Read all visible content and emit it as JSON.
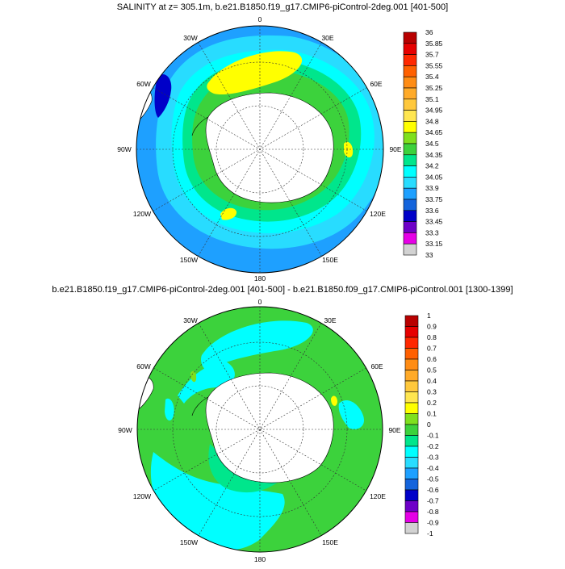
{
  "panels": [
    {
      "title": "SALINITY at z= 305.1m, b.e21.B1850.f19_g17.CMIP6-piControl-2deg.001 [401-500]",
      "colorbar": {
        "labels": [
          "36",
          "35.85",
          "35.7",
          "35.55",
          "35.4",
          "35.25",
          "35.1",
          "34.95",
          "34.8",
          "34.65",
          "34.5",
          "34.35",
          "34.2",
          "34.05",
          "33.9",
          "33.75",
          "33.6",
          "33.45",
          "33.3",
          "33.15",
          "33"
        ],
        "colors": [
          "#b80000",
          "#e60000",
          "#ff2800",
          "#ff6000",
          "#ff8c14",
          "#ffaa28",
          "#ffc83c",
          "#ffe650",
          "#ffff00",
          "#7fe01e",
          "#3cd23c",
          "#00e68c",
          "#00ffff",
          "#28dcff",
          "#1ea0ff",
          "#1464dc",
          "#0000c8",
          "#6e00c8",
          "#e600e6",
          "#d2d2d2",
          "#6e6e6e"
        ]
      }
    },
    {
      "title": "b.e21.B1850.f19_g17.CMIP6-piControl-2deg.001 [401-500] - b.e21.B1850.f09_g17.CMIP6-piControl.001 [1300-1399]",
      "colorbar": {
        "labels": [
          "1",
          "0.9",
          "0.8",
          "0.7",
          "0.6",
          "0.5",
          "0.4",
          "0.3",
          "0.2",
          "0.1",
          "0",
          "-0.1",
          "-0.2",
          "-0.3",
          "-0.4",
          "-0.5",
          "-0.6",
          "-0.7",
          "-0.8",
          "-0.9",
          "-1"
        ],
        "colors": [
          "#b80000",
          "#e60000",
          "#ff2800",
          "#ff6000",
          "#ff8c14",
          "#ffaa28",
          "#ffc83c",
          "#ffe650",
          "#ffff00",
          "#7fe01e",
          "#3cd23c",
          "#00e68c",
          "#00ffff",
          "#28dcff",
          "#1ea0ff",
          "#1464dc",
          "#0000c8",
          "#6e00c8",
          "#e600e6",
          "#d2d2d2",
          "#6e6e6e"
        ]
      }
    }
  ],
  "longitude_labels": [
    "0",
    "30E",
    "60E",
    "90E",
    "120E",
    "150E",
    "180",
    "150W",
    "120W",
    "90W",
    "60W",
    "30W"
  ]
}
